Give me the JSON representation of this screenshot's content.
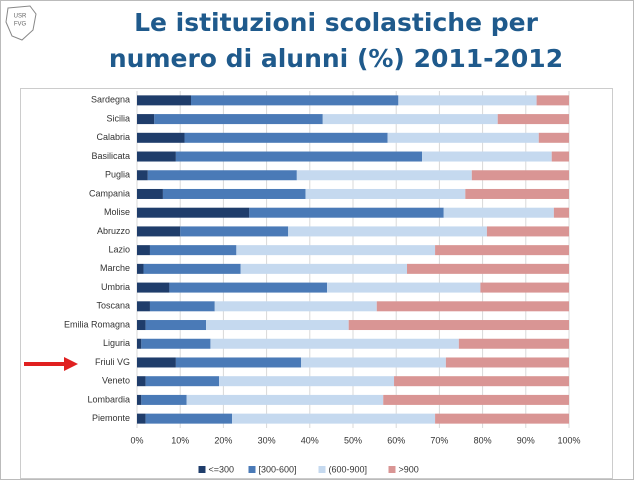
{
  "logo": [
    "USR",
    "FVG"
  ],
  "chart_data": {
    "type": "stacked_bar_horizontal",
    "title": [
      "Le istituzioni scolastiche per",
      "numero di alunni (%) 2011-2012"
    ],
    "categories": [
      "Sardegna",
      "Sicilia",
      "Calabria",
      "Basilicata",
      "Puglia",
      "Campania",
      "Molise",
      "Abruzzo",
      "Lazio",
      "Marche",
      "Umbria",
      "Toscana",
      "Emilia Romagna",
      "Liguria",
      "Friuli VG",
      "Veneto",
      "Lombardia",
      "Piemonte"
    ],
    "series": [
      {
        "name": "<=300",
        "color": "#1f3d6b",
        "values": [
          12.5,
          4,
          11,
          9,
          2.5,
          6,
          26,
          10,
          3,
          1.5,
          7.5,
          3,
          2,
          1,
          9,
          2,
          1,
          2
        ]
      },
      {
        "name": "[300-600]",
        "color": "#4a7ab7",
        "values": [
          48,
          39,
          47,
          57,
          34.5,
          33,
          45,
          25,
          20,
          22.5,
          36.5,
          15,
          14,
          16,
          29,
          17,
          10.5,
          20
        ]
      },
      {
        "name": "(600-900]",
        "color": "#c5d9ef",
        "values": [
          32,
          40.5,
          35,
          30,
          40.5,
          37,
          25.5,
          46,
          46,
          38.5,
          35.5,
          37.5,
          33,
          57.5,
          33.5,
          40.5,
          45.5,
          47
        ]
      },
      {
        "name": ">900",
        "color": "#d99594",
        "values": [
          7.5,
          16.5,
          7,
          4,
          22.5,
          24,
          3.5,
          19,
          31,
          37.5,
          20.5,
          44.5,
          51,
          25.5,
          28.5,
          40.5,
          43,
          31
        ]
      }
    ],
    "xlim": [
      0,
      100
    ],
    "xticks": [
      {
        "value": 0,
        "label": "0%"
      },
      {
        "value": 10,
        "label": "10%"
      },
      {
        "value": 20,
        "label": "20%"
      },
      {
        "value": 30,
        "label": "30%"
      },
      {
        "value": 40,
        "label": "40%"
      },
      {
        "value": 50,
        "label": "50%"
      },
      {
        "value": 60,
        "label": "60%"
      },
      {
        "value": 70,
        "label": "70%"
      },
      {
        "value": 80,
        "label": "80%"
      },
      {
        "value": 90,
        "label": "90%"
      },
      {
        "value": 100,
        "label": "100%"
      }
    ],
    "grid": true
  }
}
